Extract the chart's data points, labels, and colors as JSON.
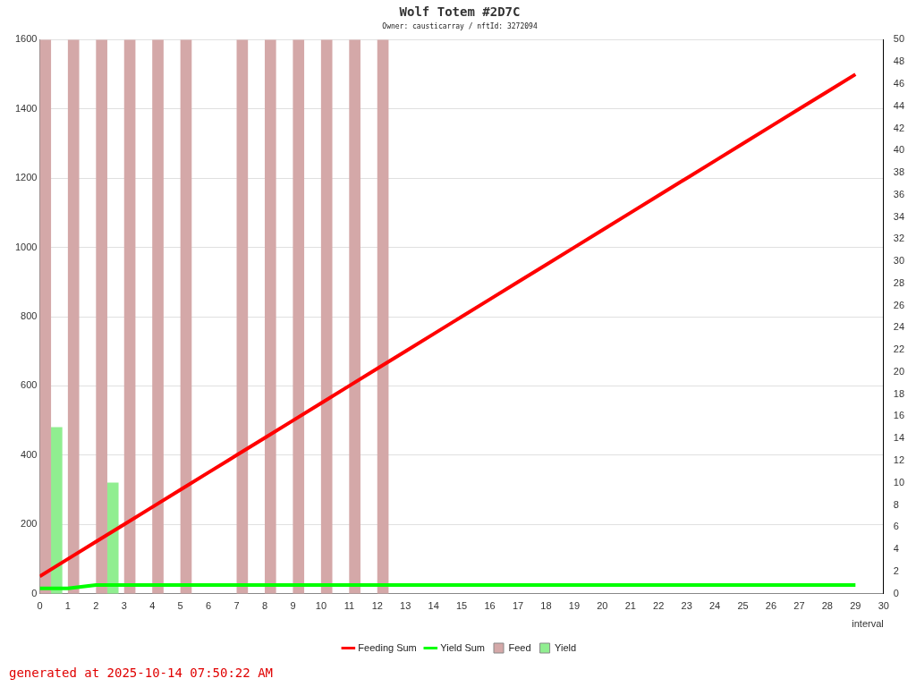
{
  "chart_data": {
    "type": "bar",
    "title": "Wolf Totem #2D7C",
    "subtitle": "Owner: causticarray / nftId: 3272094",
    "xlabel": "interval",
    "xlim": [
      0,
      30
    ],
    "xticks": [
      0,
      1,
      2,
      3,
      4,
      5,
      6,
      7,
      8,
      9,
      10,
      11,
      12,
      13,
      14,
      15,
      16,
      17,
      18,
      19,
      20,
      21,
      22,
      23,
      24,
      25,
      26,
      27,
      28,
      29,
      30
    ],
    "ylim": [
      0,
      1600
    ],
    "yticks": [
      0,
      200,
      400,
      600,
      800,
      1000,
      1200,
      1400,
      1600
    ],
    "y2lim": [
      0,
      50
    ],
    "y2ticks": [
      0,
      2,
      4,
      6,
      8,
      10,
      12,
      14,
      16,
      18,
      20,
      22,
      24,
      26,
      28,
      30,
      32,
      34,
      36,
      38,
      40,
      42,
      44,
      46,
      48,
      50
    ],
    "series": [
      {
        "name": "Feeding Sum",
        "type": "line",
        "color": "#ff0000",
        "x": [
          0,
          1,
          2,
          3,
          4,
          5,
          6,
          7,
          8,
          9,
          10,
          11,
          12,
          13,
          14,
          15,
          16,
          17,
          18,
          19,
          20,
          21,
          22,
          23,
          24,
          25,
          26,
          27,
          28,
          29
        ],
        "values": [
          50,
          100,
          150,
          200,
          250,
          300,
          350,
          400,
          450,
          500,
          550,
          600,
          650,
          700,
          750,
          800,
          850,
          900,
          950,
          1000,
          1050,
          1100,
          1150,
          1200,
          1250,
          1300,
          1350,
          1400,
          1450,
          1500
        ]
      },
      {
        "name": "Yield Sum",
        "type": "line",
        "color": "#00ff00",
        "x": [
          0,
          1,
          2,
          3,
          4,
          5,
          6,
          7,
          8,
          9,
          10,
          11,
          12,
          13,
          14,
          15,
          16,
          17,
          18,
          19,
          20,
          21,
          22,
          23,
          24,
          25,
          26,
          27,
          28,
          29
        ],
        "values": [
          15,
          15,
          25,
          25,
          25,
          25,
          25,
          25,
          25,
          25,
          25,
          25,
          25,
          25,
          25,
          25,
          25,
          25,
          25,
          25,
          25,
          25,
          25,
          25,
          25,
          25,
          25,
          25,
          25,
          25
        ]
      },
      {
        "name": "Feed",
        "axis": "y2",
        "color": "#d4a8a8",
        "x": [
          0.2,
          1.2,
          2.2,
          3.2,
          4.2,
          5.2,
          7.2,
          8.2,
          9.2,
          10.2,
          11.2,
          12.2
        ],
        "values": [
          50,
          50,
          50,
          50,
          50,
          50,
          50,
          50,
          50,
          50,
          50,
          50
        ]
      },
      {
        "name": "Yield",
        "axis": "y2",
        "color": "#90ee90",
        "x": [
          0.6,
          2.6
        ],
        "values": [
          15,
          10
        ]
      }
    ],
    "grid": "y",
    "legend": "bottom",
    "marker": "none",
    "annotations": [
      "generated at 2025-10-14 07:50:22 AM"
    ]
  }
}
